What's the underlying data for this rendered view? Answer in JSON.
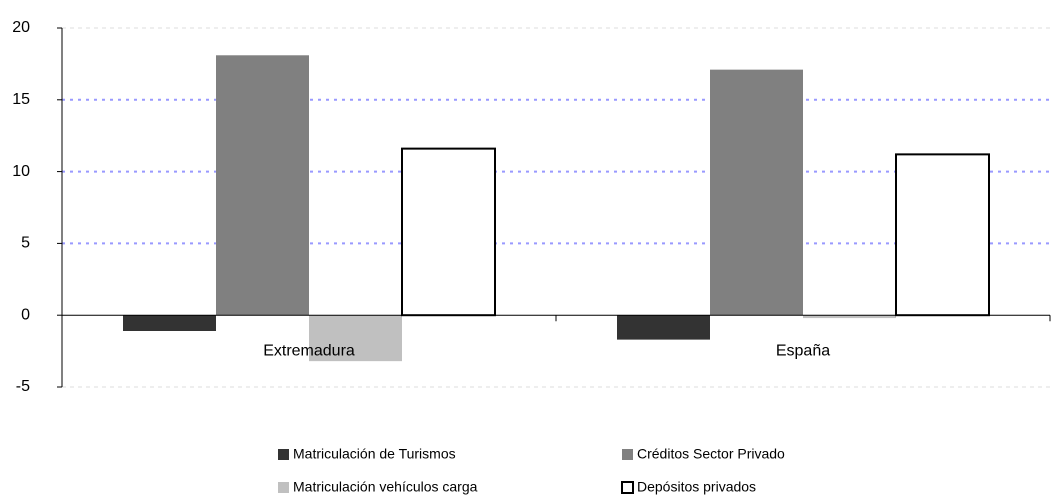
{
  "chart_data": {
    "type": "bar",
    "categories": [
      "Extremadura",
      "España"
    ],
    "series": [
      {
        "name": "Matriculación de Turismos",
        "color": "#333333",
        "values": [
          -1.1,
          -1.7
        ]
      },
      {
        "name": "Créditos Sector Privado",
        "color": "#808080",
        "values": [
          18.1,
          17.1
        ]
      },
      {
        "name": "Matriculación vehículos carga",
        "color": "#c0c0c0",
        "values": [
          -3.2,
          -0.2
        ]
      },
      {
        "name": "Depósitos privados",
        "color": "#ffffff",
        "values": [
          11.6,
          11.2
        ]
      }
    ],
    "ylim": [
      -5,
      20
    ],
    "yticks": [
      -5,
      0,
      5,
      10,
      15,
      20
    ],
    "grid": true,
    "legend": "bottom"
  }
}
